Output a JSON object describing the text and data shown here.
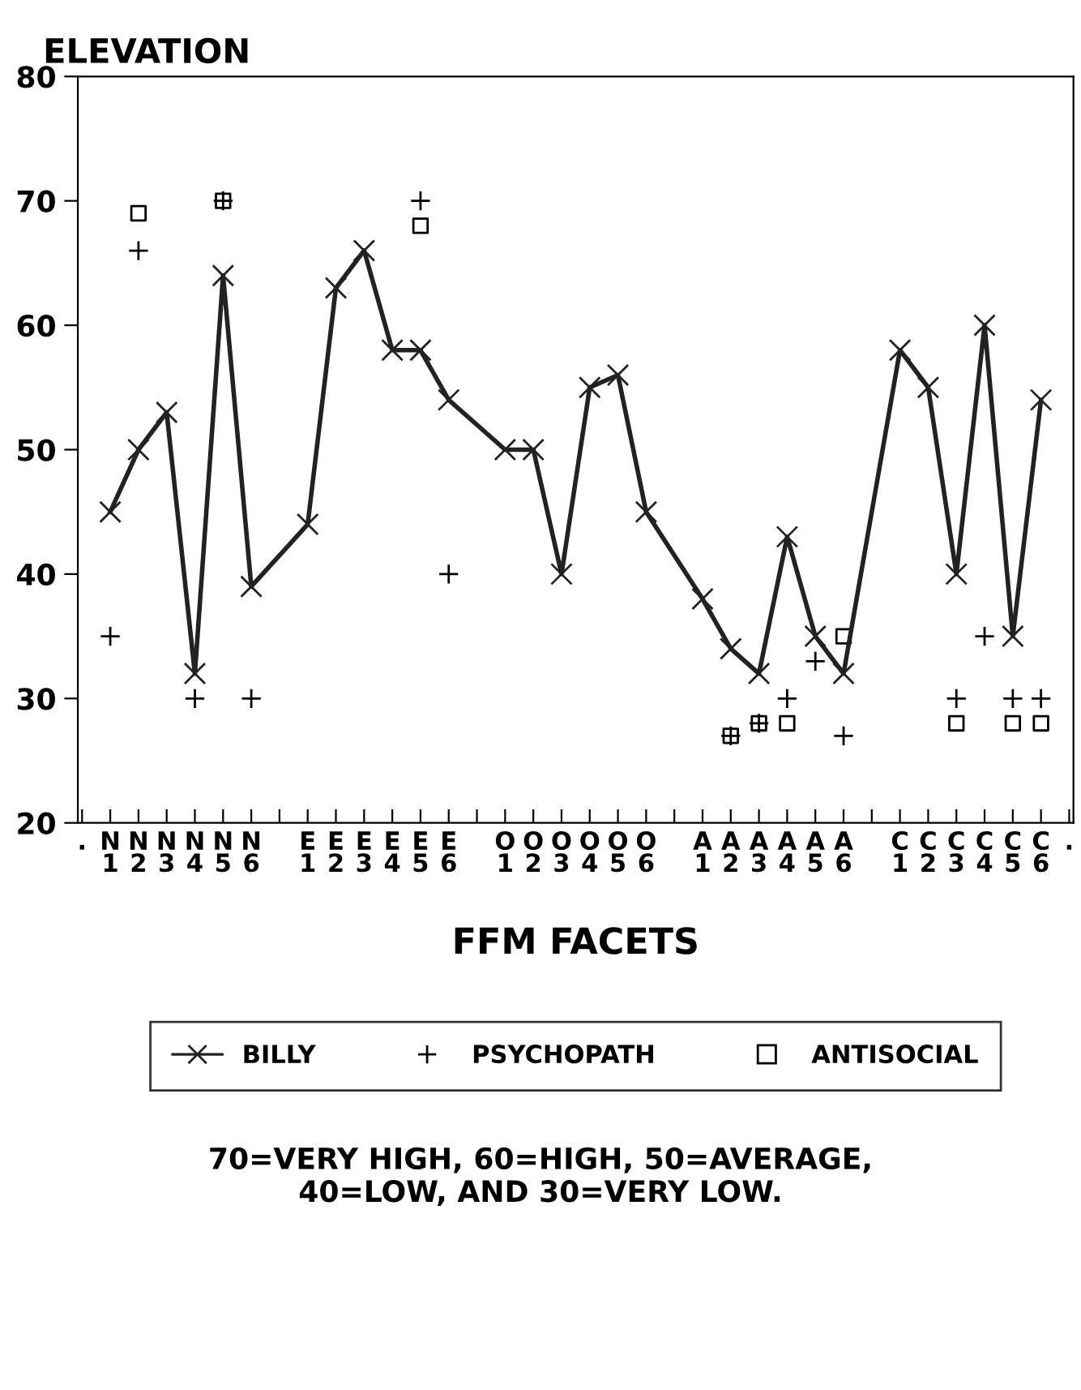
{
  "chart_data": {
    "type": "line",
    "title": "ELEVATION",
    "xlabel": "FFM FACETS",
    "categories": [
      ".",
      "N\n1",
      "N\n2",
      "N\n3",
      "N\n4",
      "N\n5",
      "N\n6",
      null,
      "E\n1",
      "E\n2",
      "E\n3",
      "E\n4",
      "E\n5",
      "E\n6",
      null,
      "O\n1",
      "O\n2",
      "O\n3",
      "O\n4",
      "O\n5",
      "O\n6",
      null,
      "A\n1",
      "A\n2",
      "A\n3",
      "A\n4",
      "A\n5",
      "A\n6",
      null,
      "C\n1",
      "C\n2",
      "C\n3",
      "C\n4",
      "C\n5",
      "C\n6",
      "."
    ],
    "series": [
      {
        "name": "BILLY",
        "marker": "x",
        "color": "#222222",
        "values": [
          null,
          45,
          50,
          53,
          32,
          64,
          39,
          null,
          44,
          63,
          66,
          58,
          58,
          54,
          null,
          50,
          50,
          40,
          55,
          56,
          45,
          null,
          38,
          34,
          32,
          43,
          35,
          32,
          null,
          58,
          55,
          40,
          60,
          35,
          54,
          null
        ]
      },
      {
        "name": "PSYCHOPATH",
        "type": "scatter",
        "marker": "cross",
        "color": "#000000",
        "values": [
          null,
          35,
          66,
          null,
          30,
          70,
          30,
          null,
          null,
          null,
          null,
          null,
          70,
          40,
          null,
          null,
          null,
          null,
          null,
          null,
          null,
          null,
          null,
          27,
          28,
          30,
          33,
          27,
          null,
          null,
          null,
          30,
          35,
          30,
          30,
          null
        ]
      },
      {
        "name": "ANTISOCIAL",
        "type": "scatter",
        "marker": "square",
        "color": "#000000",
        "values": [
          null,
          null,
          69,
          null,
          null,
          70,
          null,
          null,
          null,
          null,
          null,
          null,
          68,
          null,
          null,
          null,
          null,
          null,
          null,
          null,
          null,
          null,
          null,
          27,
          28,
          28,
          null,
          35,
          null,
          null,
          null,
          28,
          null,
          28,
          28,
          null
        ]
      }
    ],
    "ylim": [
      20,
      80
    ],
    "yticks": [
      20,
      30,
      40,
      50,
      60,
      70,
      80
    ],
    "legend": "bottom",
    "annotations": [
      "70=VERY HIGH, 60=HIGH, 50=AVERAGE,\n40=LOW, AND 30=VERY LOW."
    ]
  }
}
